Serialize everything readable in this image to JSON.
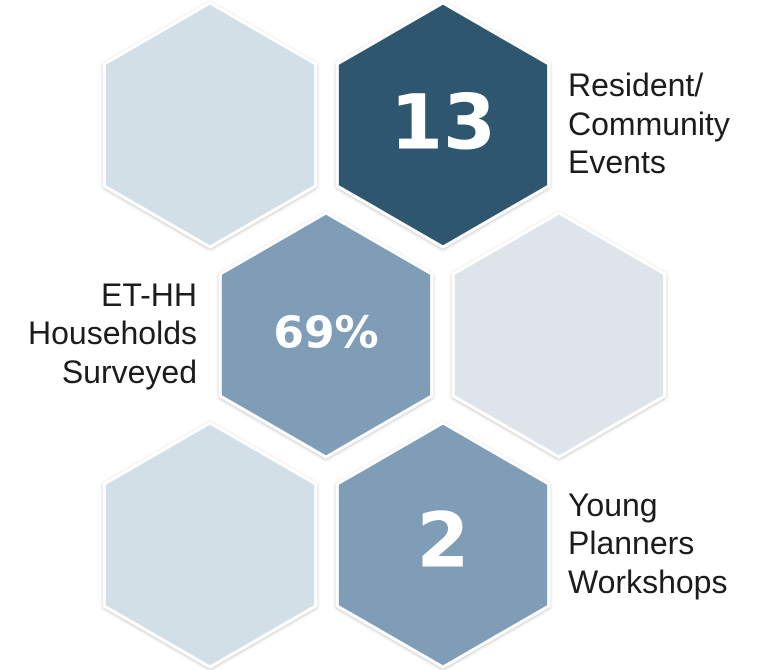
{
  "items": [
    {
      "value": "13",
      "label": [
        "Resident/",
        "Community",
        "Events"
      ]
    },
    {
      "value": "69%",
      "label": [
        "ET-HH",
        "Households",
        "Surveyed"
      ]
    },
    {
      "value": "2",
      "label": [
        "Young",
        "Planners",
        "Workshops"
      ]
    }
  ]
}
